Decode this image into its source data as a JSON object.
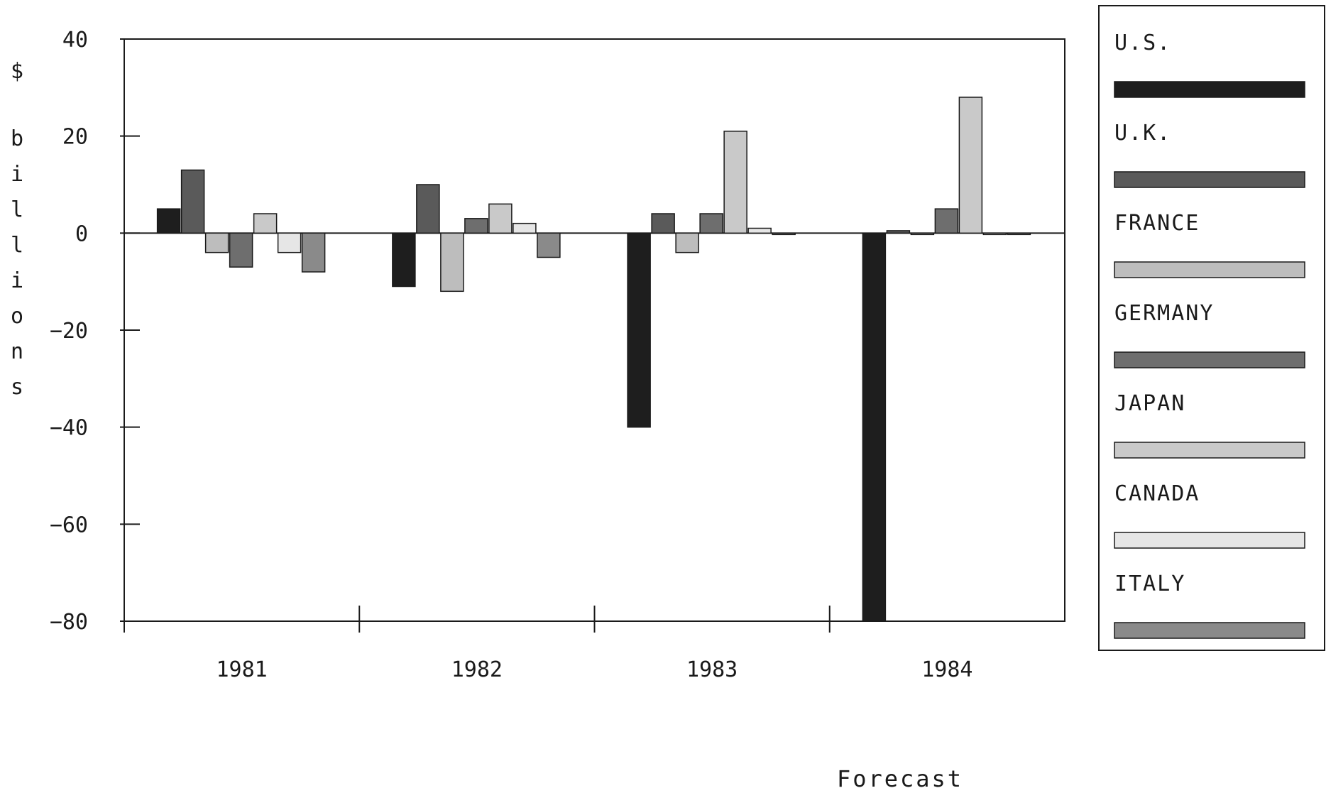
{
  "chart_data": {
    "type": "bar",
    "title": "",
    "xlabel": "",
    "ylabel": "$ billions",
    "annotation": "Forecast",
    "ylim": [
      -80,
      40
    ],
    "yticks": [
      40,
      20,
      0,
      -20,
      -40,
      -60,
      -80
    ],
    "yticks_labels": [
      "40",
      "20",
      "0",
      "−20",
      "−40",
      "−60",
      "−80"
    ],
    "categories": [
      "1981",
      "1982",
      "1983",
      "1984"
    ],
    "grid": false,
    "legend_position": "right",
    "series": [
      {
        "name": "U.S.",
        "color": "#1e1e1e",
        "values": [
          5,
          -11,
          -40,
          -80
        ]
      },
      {
        "name": "U.K.",
        "color": "#5a5a5a",
        "values": [
          13,
          10,
          4,
          0.5
        ]
      },
      {
        "name": "FRANCE",
        "color": "#bdbdbd",
        "values": [
          -4,
          -12,
          -4,
          0
        ]
      },
      {
        "name": "GERMANY",
        "color": "#6e6e6e",
        "values": [
          -7,
          3,
          4,
          5
        ]
      },
      {
        "name": "JAPAN",
        "color": "#c9c9c9",
        "values": [
          4,
          6,
          21,
          28
        ]
      },
      {
        "name": "CANADA",
        "color": "#e6e6e6",
        "values": [
          -4,
          2,
          1,
          0
        ]
      },
      {
        "name": "ITALY",
        "color": "#8a8a8a",
        "values": [
          -8,
          -5,
          0,
          0
        ]
      }
    ]
  }
}
